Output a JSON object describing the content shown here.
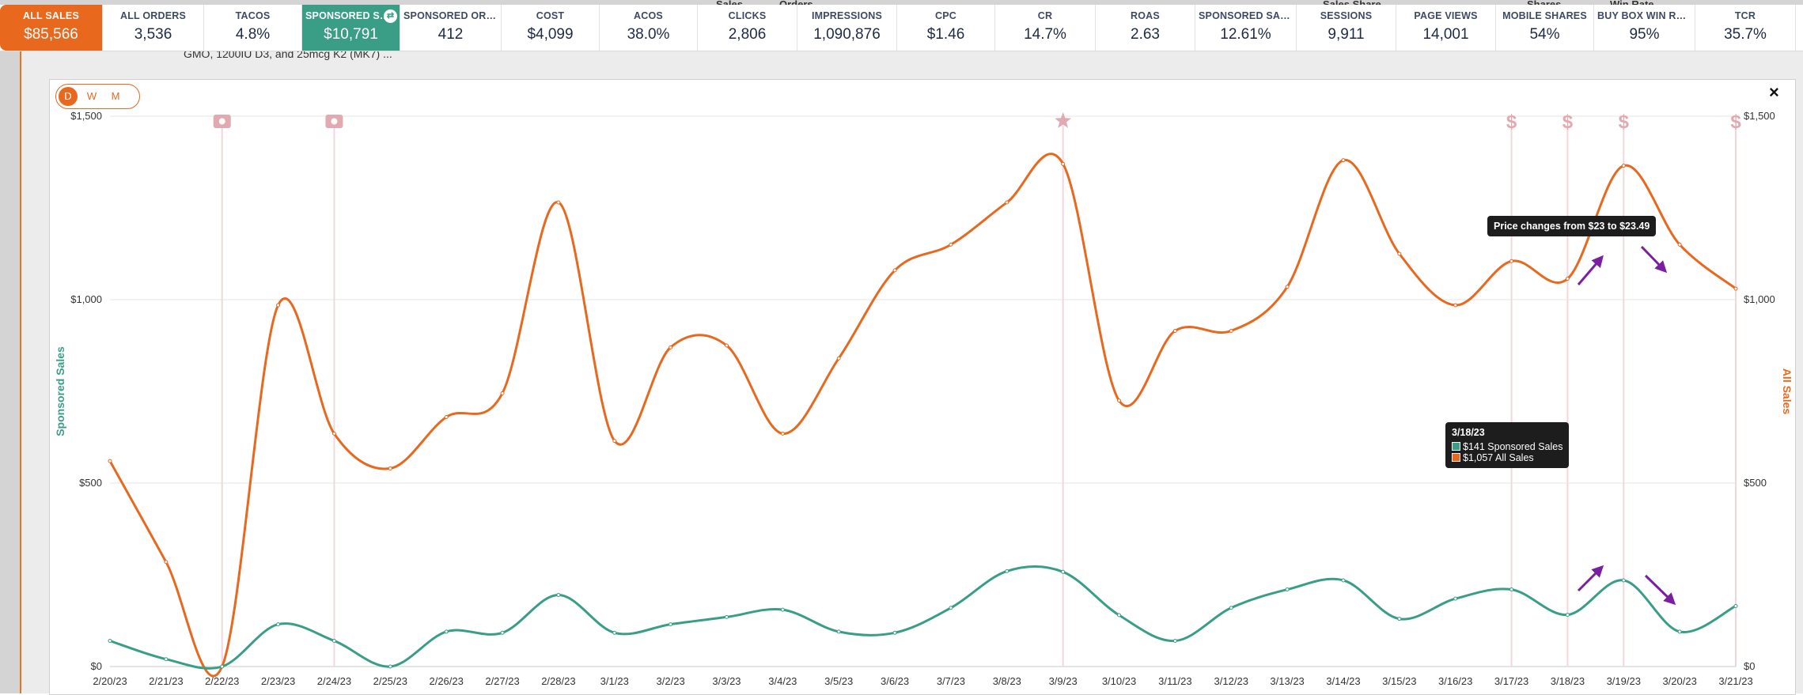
{
  "metrics": [
    {
      "label": "ALL SALES",
      "value": "$85,566",
      "state": "orange"
    },
    {
      "label": "ALL ORDERS",
      "value": "3,536"
    },
    {
      "label": "TACOS",
      "value": "4.8%"
    },
    {
      "label": "SPONSORED SALES",
      "value": "$10,791",
      "state": "green"
    },
    {
      "label": "SPONSORED ORD...",
      "value": "412"
    },
    {
      "label": "COST",
      "value": "$4,099"
    },
    {
      "label": "ACOS",
      "value": "38.0%"
    },
    {
      "label": "CLICKS",
      "value": "2,806"
    },
    {
      "label": "IMPRESSIONS",
      "value": "1,090,876"
    },
    {
      "label": "CPC",
      "value": "$1.46"
    },
    {
      "label": "CR",
      "value": "14.7%"
    },
    {
      "label": "ROAS",
      "value": "2.63"
    },
    {
      "label": "SPONSORED SAL...",
      "value": "12.61%"
    },
    {
      "label": "SESSIONS",
      "value": "9,911"
    },
    {
      "label": "PAGE VIEWS",
      "value": "14,001"
    },
    {
      "label": "MOBILE SHARES",
      "value": "54%"
    },
    {
      "label": "BUY BOX WIN RATE",
      "value": "95%"
    },
    {
      "label": "TCR",
      "value": "35.7%"
    }
  ],
  "background": {
    "row_text": "GMO, 1200IU D3, and 25mcg K2 (MK7) ...",
    "peek_labels": [
      "Sales",
      "Orders",
      "Sales Share",
      "Shares",
      "Win Rate"
    ]
  },
  "period": {
    "options": [
      "D",
      "W",
      "M"
    ],
    "selected": "D"
  },
  "close_label": "×",
  "colors": {
    "all_sales": "#e8681e",
    "sponsored_sales": "#3a9e87",
    "accent": "#e8681e",
    "event_marker": "#e2a9b0",
    "arrow": "#7b1fa2"
  },
  "chart_data": {
    "type": "line",
    "x": [
      "2/20/23",
      "2/21/23",
      "2/22/23",
      "2/23/23",
      "2/24/23",
      "2/25/23",
      "2/26/23",
      "2/27/23",
      "2/28/23",
      "3/1/23",
      "3/2/23",
      "3/3/23",
      "3/4/23",
      "3/5/23",
      "3/6/23",
      "3/7/23",
      "3/8/23",
      "3/9/23",
      "3/10/23",
      "3/11/23",
      "3/12/23",
      "3/13/23",
      "3/14/23",
      "3/15/23",
      "3/16/23",
      "3/17/23",
      "3/18/23",
      "3/19/23",
      "3/20/23",
      "3/21/23"
    ],
    "series": [
      {
        "name": "Sponsored Sales",
        "axis": "left",
        "color": "#3a9e87",
        "values": [
          70,
          20,
          0,
          115,
          70,
          0,
          95,
          92,
          195,
          92,
          115,
          135,
          155,
          95,
          92,
          160,
          260,
          258,
          140,
          70,
          160,
          210,
          235,
          130,
          185,
          210,
          141,
          235,
          95,
          165
        ]
      },
      {
        "name": "All Sales",
        "axis": "right",
        "color": "#e8681e",
        "values": [
          560,
          285,
          0,
          985,
          635,
          540,
          680,
          745,
          1265,
          615,
          870,
          875,
          635,
          840,
          1080,
          1150,
          1265,
          1370,
          725,
          915,
          915,
          1035,
          1380,
          1125,
          985,
          1105,
          1057,
          1365,
          1150,
          1030
        ]
      }
    ],
    "ylabel": "Sponsored Sales",
    "y2label": "All Sales",
    "ylim": [
      0,
      1500
    ],
    "y2lim": [
      0,
      1500
    ],
    "yticks": [
      "$0",
      "$500",
      "$1,000",
      "$1,500"
    ],
    "grid": true,
    "event_markers": [
      {
        "date": "2/22/23",
        "icon": "camera-icon"
      },
      {
        "date": "2/24/23",
        "icon": "camera-icon"
      },
      {
        "date": "3/9/23",
        "icon": "star-icon"
      },
      {
        "date": "3/17/23",
        "icon": "dollar-icon"
      },
      {
        "date": "3/18/23",
        "icon": "dollar-icon"
      },
      {
        "date": "3/19/23",
        "icon": "dollar-icon"
      },
      {
        "date": "3/21/23",
        "icon": "dollar-icon"
      }
    ],
    "tooltip": {
      "date": "3/18/23",
      "lines": [
        {
          "series": "Sponsored Sales",
          "text": "$141 Sponsored Sales"
        },
        {
          "series": "All Sales",
          "text": "$1,057 All Sales"
        }
      ]
    },
    "price_tooltip": "Price changes from $23 to $23.49"
  }
}
